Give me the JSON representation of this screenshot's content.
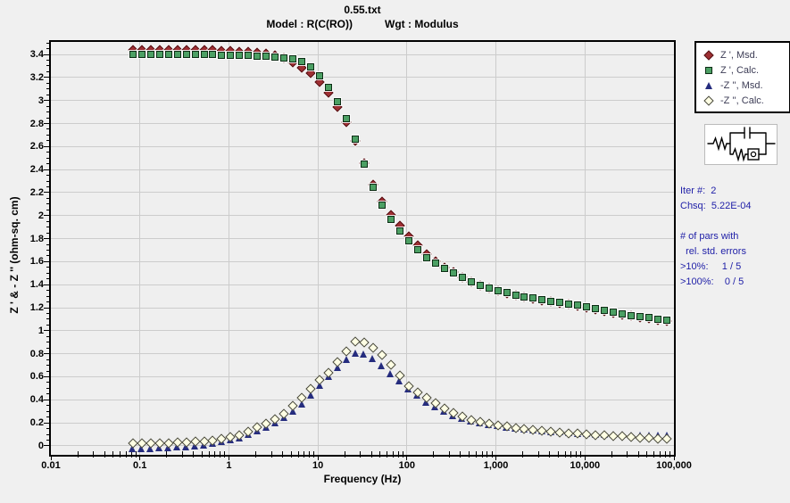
{
  "header": {
    "title": "0.55.txt",
    "model_label": "Model : R(C(RO))",
    "wgt_label": "Wgt : Modulus"
  },
  "info_panel": {
    "lines": [
      "Iter #:  2",
      "Chsq:  5.22E-04",
      "",
      "# of pars with",
      "  rel. std. errors",
      ">10%:     1 / 5",
      ">100%:    0 / 5"
    ]
  },
  "colors": {
    "background": "#f0f0f0",
    "plot_background": "#efefef",
    "gridline": "#cccccc",
    "frame": "#000000",
    "info_text": "#2121a8",
    "legend_text": "#3c3c55",
    "msd_zp": "#9e2f33",
    "calc_zp": "#4ca064",
    "msd_zpp": "#252c7e",
    "calc_zpp": "#ffffe4"
  },
  "chart_data": {
    "type": "scatter",
    "title": "0.55.txt",
    "subtitle": "Model : R(C(RO))    Wgt : Modulus",
    "xlabel": "Frequency  (Hz)",
    "ylabel": "Z ' & - Z ''  (ohm-sq. cm)",
    "x_scale": "log",
    "xlim_log10": [
      -2,
      5
    ],
    "x_tick_labels": [
      "0.01",
      "0.1",
      "1",
      "10",
      "100",
      "1,000",
      "10,000",
      "100,000"
    ],
    "ylim": [
      -0.078,
      3.509
    ],
    "y_major_step": 0.2,
    "y_minor_step": 0.05,
    "y_tick_range": [
      0,
      3.4
    ],
    "grid": true,
    "legend_position": "top-right",
    "points_per_decade": 10,
    "logf_start": -1.08,
    "logf_end": 4.92,
    "series": [
      {
        "name": "Z ', Msd.",
        "marker": "diamond",
        "fill": "#9e2f33",
        "points": [
          [
            -1.08,
            3.44
          ],
          [
            -0.4,
            3.44
          ],
          [
            0.2,
            3.425
          ],
          [
            0.5,
            3.4
          ],
          [
            0.7,
            3.34
          ],
          [
            0.85,
            3.27
          ],
          [
            1.0,
            3.18
          ],
          [
            1.2,
            2.97
          ],
          [
            1.4,
            2.68
          ],
          [
            1.62,
            2.27
          ],
          [
            1.8,
            2.03
          ],
          [
            2.0,
            1.84
          ],
          [
            2.2,
            1.68
          ],
          [
            2.4,
            1.56
          ],
          [
            2.6,
            1.475
          ],
          [
            2.8,
            1.4
          ],
          [
            3.0,
            1.35
          ],
          [
            3.3,
            1.295
          ],
          [
            3.6,
            1.255
          ],
          [
            4.0,
            1.205
          ],
          [
            4.4,
            1.145
          ],
          [
            4.7,
            1.11
          ],
          [
            4.92,
            1.085
          ]
        ]
      },
      {
        "name": "Z ', Calc.",
        "marker": "square",
        "fill": "#4ca064",
        "points": [
          [
            -1.08,
            3.4
          ],
          [
            -0.4,
            3.4
          ],
          [
            0.2,
            3.39
          ],
          [
            0.6,
            3.375
          ],
          [
            0.85,
            3.33
          ],
          [
            1.0,
            3.23
          ],
          [
            1.2,
            3.02
          ],
          [
            1.4,
            2.7
          ],
          [
            1.62,
            2.25
          ],
          [
            1.8,
            1.99
          ],
          [
            2.0,
            1.8
          ],
          [
            2.2,
            1.65
          ],
          [
            2.4,
            1.55
          ],
          [
            2.6,
            1.47
          ],
          [
            2.8,
            1.4
          ],
          [
            3.0,
            1.35
          ],
          [
            3.3,
            1.3
          ],
          [
            3.6,
            1.26
          ],
          [
            4.0,
            1.21
          ],
          [
            4.4,
            1.15
          ],
          [
            4.7,
            1.115
          ],
          [
            4.92,
            1.09
          ]
        ]
      },
      {
        "name": "-Z '', Msd.",
        "marker": "triangle",
        "fill": "#252c7e",
        "points": [
          [
            -1.08,
            -0.035
          ],
          [
            -0.6,
            -0.02
          ],
          [
            -0.2,
            0.01
          ],
          [
            0.1,
            0.06
          ],
          [
            0.35,
            0.13
          ],
          [
            0.6,
            0.23
          ],
          [
            0.8,
            0.34
          ],
          [
            1.0,
            0.5
          ],
          [
            1.15,
            0.62
          ],
          [
            1.3,
            0.73
          ],
          [
            1.42,
            0.8
          ],
          [
            1.55,
            0.78
          ],
          [
            1.7,
            0.7
          ],
          [
            1.85,
            0.6
          ],
          [
            2.0,
            0.5
          ],
          [
            2.2,
            0.385
          ],
          [
            2.4,
            0.3
          ],
          [
            2.6,
            0.235
          ],
          [
            2.8,
            0.195
          ],
          [
            3.0,
            0.17
          ],
          [
            3.3,
            0.14
          ],
          [
            3.6,
            0.118
          ],
          [
            4.0,
            0.1
          ],
          [
            4.4,
            0.09
          ],
          [
            4.7,
            0.085
          ],
          [
            4.92,
            0.082
          ]
        ]
      },
      {
        "name": "-Z '', Calc.",
        "marker": "diamond-open",
        "fill": "#ffffe4",
        "points": [
          [
            -1.08,
            0.02
          ],
          [
            -0.6,
            0.028
          ],
          [
            -0.2,
            0.045
          ],
          [
            0.1,
            0.09
          ],
          [
            0.35,
            0.17
          ],
          [
            0.6,
            0.27
          ],
          [
            0.8,
            0.4
          ],
          [
            1.0,
            0.557
          ],
          [
            1.15,
            0.66
          ],
          [
            1.3,
            0.8
          ],
          [
            1.44,
            0.91
          ],
          [
            1.58,
            0.875
          ],
          [
            1.7,
            0.8
          ],
          [
            1.85,
            0.68
          ],
          [
            2.0,
            0.53
          ],
          [
            2.2,
            0.43
          ],
          [
            2.4,
            0.33
          ],
          [
            2.6,
            0.26
          ],
          [
            2.8,
            0.21
          ],
          [
            3.0,
            0.18
          ],
          [
            3.3,
            0.148
          ],
          [
            3.6,
            0.122
          ],
          [
            4.0,
            0.1
          ],
          [
            4.4,
            0.082
          ],
          [
            4.7,
            0.07
          ],
          [
            4.92,
            0.062
          ]
        ]
      }
    ]
  }
}
